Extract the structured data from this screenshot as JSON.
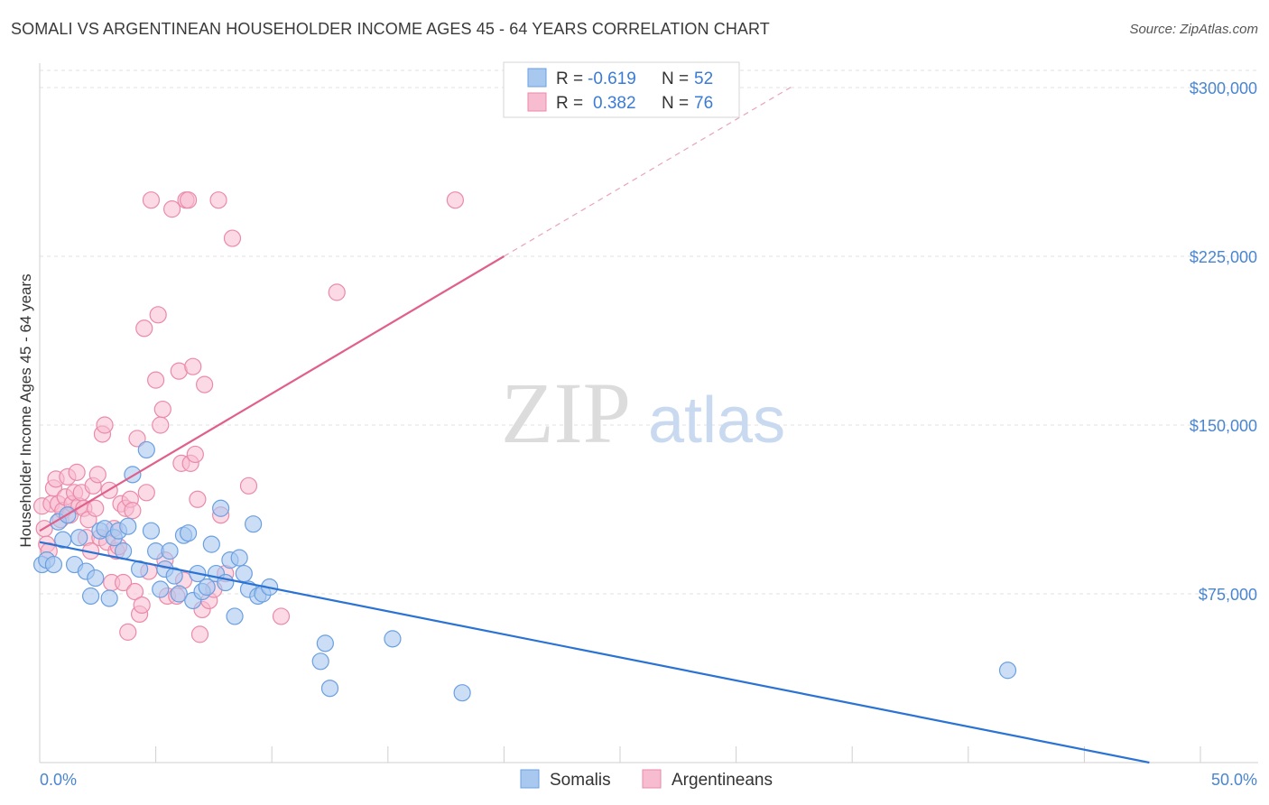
{
  "title": "SOMALI VS ARGENTINEAN HOUSEHOLDER INCOME AGES 45 - 64 YEARS CORRELATION CHART",
  "source": "Source: ZipAtlas.com",
  "watermark": {
    "zip": "ZIP",
    "atlas": "atlas"
  },
  "colors": {
    "blue_fill": "#a9c8f0",
    "blue_stroke": "#6a9fe0",
    "blue_line": "#2a72d4",
    "pink_fill": "#f7bcd0",
    "pink_stroke": "#eb8aa8",
    "pink_line": "#e0608a",
    "tick_text": "#4a86d0",
    "grid": "#e2e2e2"
  },
  "legend": {
    "rows": [
      {
        "r_label": "R =",
        "r_value": "-0.619",
        "n_label": "N =",
        "n_value": "52"
      },
      {
        "r_label": "R =",
        "r_value": "0.382",
        "n_label": "N =",
        "n_value": "76"
      }
    ]
  },
  "bottom_legend": {
    "somalis": "Somalis",
    "argentineans": "Argentineans"
  },
  "chart_data": {
    "type": "scatter",
    "ylabel": "Householder Income Ages 45 - 64 years",
    "x_tick_labels": [
      "0.0%",
      "50.0%"
    ],
    "y_tick_labels": [
      "$75,000",
      "$150,000",
      "$225,000",
      "$300,000"
    ],
    "y_ticks": [
      75000,
      150000,
      225000,
      300000
    ],
    "xlim": [
      0,
      0.5
    ],
    "ylim": [
      0,
      310000
    ],
    "grid": true,
    "legend_placement": "top-center",
    "series": [
      {
        "name": "Somalis",
        "trend": {
          "x0": 0.0,
          "y0": 98000,
          "x1": 0.5,
          "y1": -3000
        },
        "points": [
          [
            0.001,
            88000
          ],
          [
            0.003,
            90000
          ],
          [
            0.006,
            88000
          ],
          [
            0.008,
            107000
          ],
          [
            0.01,
            99000
          ],
          [
            0.012,
            110000
          ],
          [
            0.015,
            88000
          ],
          [
            0.017,
            100000
          ],
          [
            0.02,
            85000
          ],
          [
            0.022,
            74000
          ],
          [
            0.024,
            82000
          ],
          [
            0.026,
            103000
          ],
          [
            0.028,
            104000
          ],
          [
            0.03,
            73000
          ],
          [
            0.032,
            100000
          ],
          [
            0.034,
            103000
          ],
          [
            0.036,
            94000
          ],
          [
            0.038,
            105000
          ],
          [
            0.04,
            128000
          ],
          [
            0.043,
            86000
          ],
          [
            0.046,
            139000
          ],
          [
            0.048,
            103000
          ],
          [
            0.05,
            94000
          ],
          [
            0.052,
            77000
          ],
          [
            0.054,
            86000
          ],
          [
            0.056,
            94000
          ],
          [
            0.058,
            83000
          ],
          [
            0.06,
            75000
          ],
          [
            0.062,
            101000
          ],
          [
            0.064,
            102000
          ],
          [
            0.066,
            72000
          ],
          [
            0.068,
            84000
          ],
          [
            0.07,
            76000
          ],
          [
            0.072,
            78000
          ],
          [
            0.074,
            97000
          ],
          [
            0.076,
            84000
          ],
          [
            0.078,
            113000
          ],
          [
            0.08,
            80000
          ],
          [
            0.082,
            90000
          ],
          [
            0.084,
            65000
          ],
          [
            0.086,
            91000
          ],
          [
            0.088,
            84000
          ],
          [
            0.09,
            77000
          ],
          [
            0.092,
            106000
          ],
          [
            0.094,
            74000
          ],
          [
            0.096,
            75000
          ],
          [
            0.099,
            78000
          ],
          [
            0.121,
            45000
          ],
          [
            0.123,
            53000
          ],
          [
            0.125,
            33000
          ],
          [
            0.152,
            55000
          ],
          [
            0.182,
            31000
          ],
          [
            0.417,
            41000
          ]
        ]
      },
      {
        "name": "Argentineans",
        "trend": {
          "x0": 0.0,
          "y0": 103000,
          "x1": 0.2,
          "y1": 225000,
          "dash_to_x": 0.325,
          "dash_to_y": 301000
        },
        "points": [
          [
            0.001,
            114000
          ],
          [
            0.002,
            104000
          ],
          [
            0.003,
            97000
          ],
          [
            0.004,
            94000
          ],
          [
            0.005,
            115000
          ],
          [
            0.006,
            122000
          ],
          [
            0.007,
            126000
          ],
          [
            0.008,
            115000
          ],
          [
            0.009,
            108000
          ],
          [
            0.01,
            112000
          ],
          [
            0.011,
            118000
          ],
          [
            0.012,
            127000
          ],
          [
            0.013,
            110000
          ],
          [
            0.014,
            115000
          ],
          [
            0.015,
            120000
          ],
          [
            0.016,
            129000
          ],
          [
            0.017,
            114000
          ],
          [
            0.018,
            120000
          ],
          [
            0.019,
            113000
          ],
          [
            0.02,
            100000
          ],
          [
            0.021,
            108000
          ],
          [
            0.022,
            94000
          ],
          [
            0.023,
            123000
          ],
          [
            0.024,
            113000
          ],
          [
            0.025,
            128000
          ],
          [
            0.026,
            100000
          ],
          [
            0.027,
            146000
          ],
          [
            0.028,
            150000
          ],
          [
            0.029,
            98000
          ],
          [
            0.03,
            121000
          ],
          [
            0.031,
            80000
          ],
          [
            0.032,
            104000
          ],
          [
            0.033,
            94000
          ],
          [
            0.034,
            96000
          ],
          [
            0.035,
            115000
          ],
          [
            0.036,
            80000
          ],
          [
            0.037,
            113000
          ],
          [
            0.038,
            58000
          ],
          [
            0.039,
            117000
          ],
          [
            0.04,
            112000
          ],
          [
            0.041,
            76000
          ],
          [
            0.042,
            144000
          ],
          [
            0.043,
            66000
          ],
          [
            0.044,
            70000
          ],
          [
            0.045,
            193000
          ],
          [
            0.046,
            120000
          ],
          [
            0.047,
            85000
          ],
          [
            0.048,
            250000
          ],
          [
            0.05,
            170000
          ],
          [
            0.051,
            199000
          ],
          [
            0.052,
            150000
          ],
          [
            0.053,
            157000
          ],
          [
            0.054,
            90000
          ],
          [
            0.055,
            74000
          ],
          [
            0.057,
            246000
          ],
          [
            0.059,
            74000
          ],
          [
            0.06,
            174000
          ],
          [
            0.061,
            133000
          ],
          [
            0.062,
            81000
          ],
          [
            0.063,
            250000
          ],
          [
            0.064,
            250000
          ],
          [
            0.065,
            133000
          ],
          [
            0.066,
            176000
          ],
          [
            0.067,
            137000
          ],
          [
            0.068,
            117000
          ],
          [
            0.069,
            57000
          ],
          [
            0.07,
            68000
          ],
          [
            0.071,
            168000
          ],
          [
            0.073,
            72000
          ],
          [
            0.075,
            77000
          ],
          [
            0.077,
            250000
          ],
          [
            0.078,
            110000
          ],
          [
            0.08,
            84000
          ],
          [
            0.083,
            233000
          ],
          [
            0.09,
            123000
          ],
          [
            0.104,
            65000
          ],
          [
            0.128,
            209000
          ],
          [
            0.179,
            250000
          ]
        ]
      }
    ]
  }
}
